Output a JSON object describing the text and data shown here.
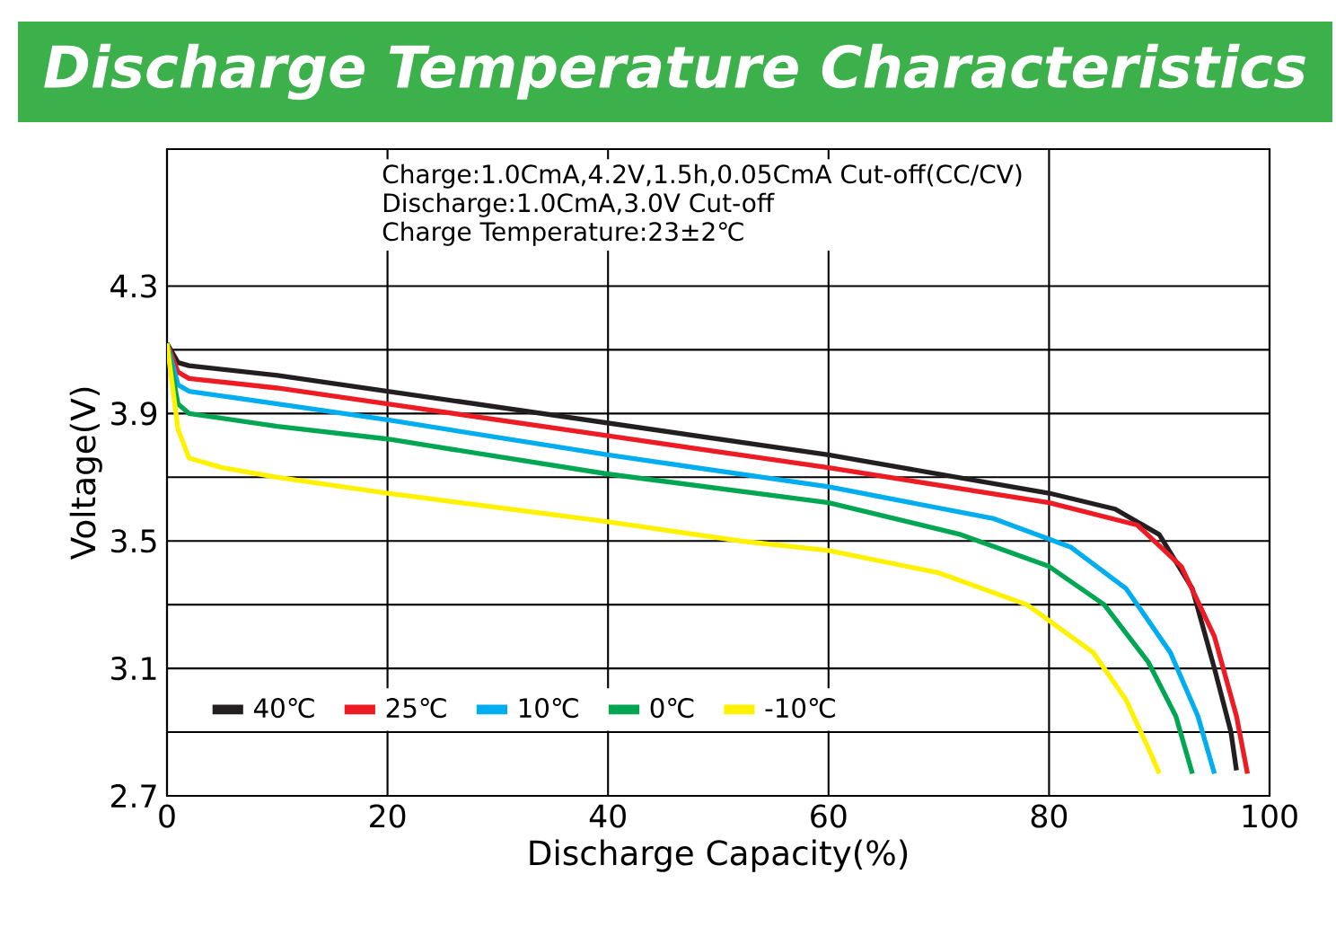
{
  "chart_data": {
    "type": "line",
    "title": "Discharge Temperature Characteristics",
    "xlabel": "Discharge Capacity(%)",
    "ylabel": "Voltage(V)",
    "annotations": [
      "Charge:1.0CmA,4.2V,1.5h,0.05CmA Cut-off(CC/CV)",
      "Discharge:1.0CmA,3.0V Cut-off",
      "Charge Temperature:23±2℃"
    ],
    "xlim": [
      0,
      100
    ],
    "ylim": [
      2.7,
      4.73
    ],
    "xticks": [
      0,
      20,
      40,
      60,
      80,
      100
    ],
    "yticks": [
      2.7,
      {
        "value": 2.9,
        "label": null
      },
      3.1,
      {
        "value": 3.3,
        "label": null
      },
      3.5,
      {
        "value": 3.7,
        "label": null
      },
      3.9,
      {
        "value": 4.1,
        "label": null
      },
      4.3
    ],
    "grid": true,
    "legend": "bottom left",
    "marker": "none",
    "line_style": "solid",
    "series": [
      {
        "name": "40℃",
        "color": "#231f20",
        "x": [
          0,
          1,
          2,
          10,
          20,
          40,
          60,
          80,
          86,
          90,
          93,
          95,
          96.5,
          97
        ],
        "values": [
          4.12,
          4.06,
          4.05,
          4.02,
          3.97,
          3.87,
          3.77,
          3.65,
          3.6,
          3.52,
          3.35,
          3.1,
          2.9,
          2.78
        ]
      },
      {
        "name": "25℃",
        "color": "#ed1c24",
        "x": [
          0,
          1,
          2,
          10,
          20,
          40,
          60,
          80,
          88,
          92,
          95,
          97,
          98
        ],
        "values": [
          4.12,
          4.03,
          4.01,
          3.98,
          3.93,
          3.83,
          3.73,
          3.62,
          3.55,
          3.42,
          3.2,
          2.95,
          2.77
        ]
      },
      {
        "name": "10℃",
        "color": "#00aeef",
        "x": [
          0,
          1,
          2,
          10,
          20,
          40,
          60,
          75,
          82,
          87,
          91,
          93.5,
          95
        ],
        "values": [
          4.12,
          3.99,
          3.97,
          3.93,
          3.88,
          3.77,
          3.67,
          3.57,
          3.48,
          3.35,
          3.15,
          2.95,
          2.77
        ]
      },
      {
        "name": "0℃",
        "color": "#00a651",
        "x": [
          0,
          1,
          2,
          10,
          20,
          40,
          60,
          72,
          80,
          85,
          89,
          91.5,
          93
        ],
        "values": [
          4.12,
          3.93,
          3.9,
          3.86,
          3.82,
          3.71,
          3.62,
          3.52,
          3.42,
          3.3,
          3.12,
          2.95,
          2.77
        ]
      },
      {
        "name": "-10℃",
        "color": "#fff200",
        "x": [
          0,
          1,
          2,
          5,
          10,
          20,
          40,
          52,
          60,
          70,
          78,
          84,
          87,
          89,
          90
        ],
        "values": [
          4.12,
          3.85,
          3.76,
          3.73,
          3.7,
          3.65,
          3.56,
          3.5,
          3.47,
          3.4,
          3.3,
          3.15,
          3.0,
          2.85,
          2.77
        ]
      }
    ]
  }
}
